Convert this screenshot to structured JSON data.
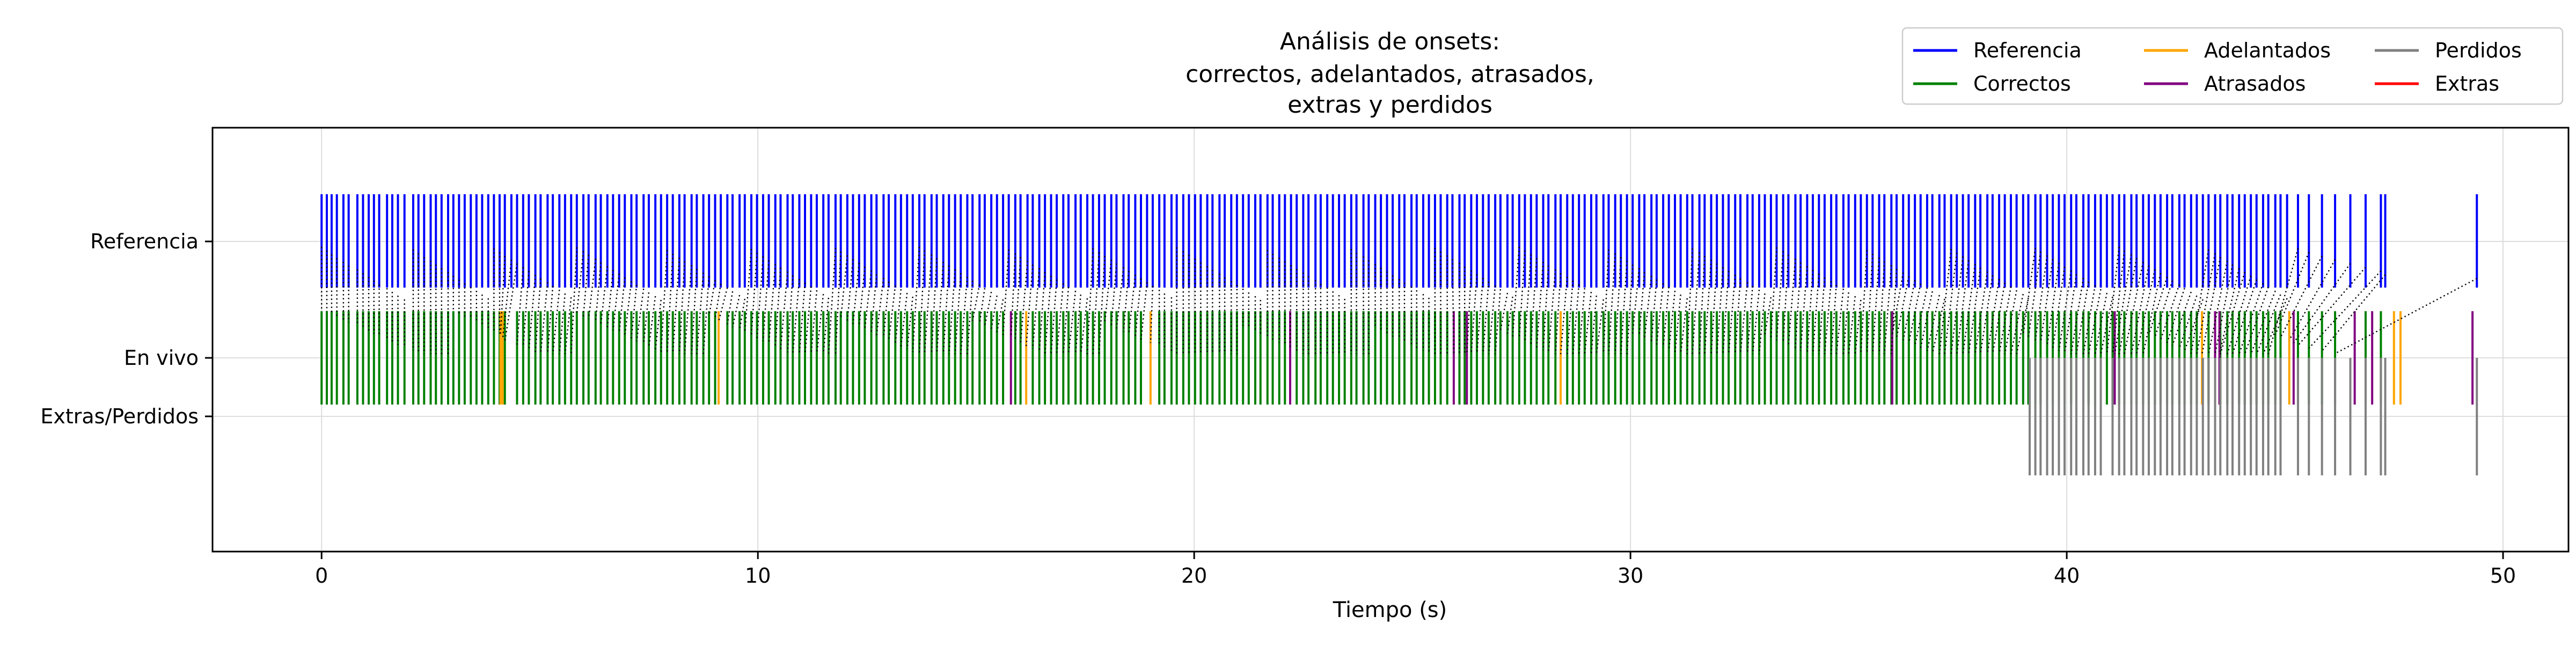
{
  "chart_data": {
    "type": "event-raster",
    "title": [
      "Análisis de onsets:",
      "correctos, adelantados, atrasados,",
      "extras y perdidos"
    ],
    "xlabel": "Tiempo (s)",
    "ylabel": "",
    "xlim": [
      -2.5,
      51.5
    ],
    "xticks": [
      0,
      10,
      20,
      30,
      40,
      50
    ],
    "xtick_labels": [
      "0",
      "10",
      "20",
      "30",
      "40",
      "50"
    ],
    "yticks": [
      "Referencia",
      "En vivo",
      "Extras/Perdidos"
    ],
    "grid": true,
    "legend": {
      "location": "top-right",
      "columns": 3,
      "entries": [
        {
          "name": "Referencia",
          "color": "#0000ff"
        },
        {
          "name": "Correctos",
          "color": "#008000"
        },
        {
          "name": "Adelantados",
          "color": "#ffa500"
        },
        {
          "name": "Atrasados",
          "color": "#800080"
        },
        {
          "name": "Perdidos",
          "color": "#808080"
        },
        {
          "name": "Extras",
          "color": "#ff0000"
        }
      ]
    },
    "series": [
      {
        "name": "Referencia",
        "row": "Referencia",
        "color": "#0000ff",
        "onsets": [
          0.0,
          0.12,
          0.23,
          0.35,
          0.5,
          0.62,
          0.82,
          0.95,
          1.08,
          1.2,
          1.32,
          1.5,
          1.62,
          1.75,
          1.9,
          2.1,
          2.22,
          2.35,
          2.5,
          2.62,
          2.75,
          2.9,
          3.02,
          3.15,
          3.28,
          3.42,
          3.55,
          3.68,
          3.82,
          3.95,
          4.08,
          4.2,
          4.35,
          4.48,
          4.62,
          4.75,
          4.9,
          5.02,
          5.18,
          5.3,
          5.45,
          5.58,
          5.72,
          5.85,
          6.0,
          6.12,
          6.28,
          6.4,
          6.55,
          6.68,
          6.82,
          6.95,
          7.1,
          7.22,
          7.38,
          7.5,
          7.65,
          7.78,
          7.92,
          8.05,
          8.2,
          8.32,
          8.48,
          8.6,
          8.75,
          8.88,
          9.02,
          9.15,
          9.3,
          9.42,
          9.58,
          9.7,
          9.85,
          9.98,
          10.12,
          10.25,
          10.4,
          10.52,
          10.68,
          10.8,
          10.95,
          11.08,
          11.22,
          11.35,
          11.5,
          11.62,
          11.78,
          11.9,
          12.05,
          12.18,
          12.32,
          12.45,
          12.6,
          12.72,
          12.88,
          13.0,
          13.15,
          13.28,
          13.42,
          13.55,
          13.7,
          13.82,
          13.98,
          14.1,
          14.25,
          14.38,
          14.52,
          14.65,
          14.8,
          14.92,
          15.08,
          15.2,
          15.35,
          15.48,
          15.62,
          15.75,
          15.9,
          16.02,
          16.18,
          16.3,
          16.45,
          16.58,
          16.72,
          16.85,
          17.0,
          17.12,
          17.28,
          17.4,
          17.55,
          17.68,
          17.82,
          17.95,
          18.1,
          18.22,
          18.38,
          18.5,
          18.65,
          18.78,
          18.92,
          19.05,
          19.2,
          19.32,
          19.48,
          19.6,
          19.75,
          19.88,
          20.02,
          20.15,
          20.3,
          20.42,
          20.58,
          20.7,
          20.85,
          20.98,
          21.12,
          21.25,
          21.4,
          21.52,
          21.68,
          21.8,
          21.95,
          22.08,
          22.22,
          22.35,
          22.5,
          22.62,
          22.78,
          22.9,
          23.05,
          23.18,
          23.32,
          23.45,
          23.6,
          23.72,
          23.88,
          24.0,
          24.15,
          24.28,
          24.42,
          24.55,
          24.7,
          24.82,
          24.98,
          25.1,
          25.25,
          25.38,
          25.52,
          25.65,
          25.8,
          25.92,
          26.08,
          26.2,
          26.35,
          26.48,
          26.62,
          26.75,
          26.9,
          27.02,
          27.18,
          27.3,
          27.45,
          27.58,
          27.72,
          27.85,
          28.0,
          28.12,
          28.28,
          28.4,
          28.55,
          28.68,
          28.82,
          28.95,
          29.1,
          29.22,
          29.38,
          29.5,
          29.65,
          29.78,
          29.92,
          30.05,
          30.2,
          30.32,
          30.48,
          30.6,
          30.75,
          30.88,
          31.02,
          31.15,
          31.3,
          31.42,
          31.58,
          31.7,
          31.85,
          31.98,
          32.12,
          32.25,
          32.4,
          32.52,
          32.68,
          32.8,
          32.95,
          33.08,
          33.22,
          33.35,
          33.5,
          33.62,
          33.78,
          33.9,
          34.05,
          34.18,
          34.32,
          34.45,
          34.6,
          34.72,
          34.88,
          35.0,
          35.15,
          35.28,
          35.42,
          35.55,
          35.7,
          35.82,
          35.98,
          36.1,
          36.25,
          36.38,
          36.52,
          36.65,
          36.8,
          36.92,
          37.08,
          37.2,
          37.35,
          37.48,
          37.62,
          37.75,
          37.9,
          38.02,
          38.18,
          38.3,
          38.45,
          38.58,
          38.72,
          38.85,
          39.0,
          39.12,
          39.28,
          39.4,
          39.55,
          39.68,
          39.82,
          39.95,
          40.1,
          40.22,
          40.38,
          40.5,
          40.65,
          40.78,
          40.92,
          41.05,
          41.2,
          41.32,
          41.48,
          41.6,
          41.75,
          41.88,
          42.02,
          42.15,
          42.3,
          42.42,
          42.58,
          42.7,
          42.85,
          42.98,
          43.12,
          43.25,
          43.4,
          43.52,
          43.68,
          43.8,
          43.95,
          44.08,
          44.22,
          44.35,
          44.5,
          44.62,
          44.78,
          44.9,
          45.05,
          45.3,
          45.55,
          45.85,
          46.15,
          46.5,
          46.85,
          47.2,
          47.3,
          49.4
        ]
      },
      {
        "name": "Correctos",
        "row": "En vivo",
        "color": "#008000",
        "onsets": [
          0.0,
          0.12,
          0.23,
          0.35,
          0.5,
          0.62,
          0.82,
          0.95,
          1.08,
          1.2,
          1.32,
          1.5,
          1.62,
          1.75,
          1.9,
          2.1,
          2.22,
          2.35,
          2.5,
          2.62,
          2.75,
          2.9,
          3.02,
          3.15,
          3.28,
          3.42,
          3.55,
          3.68,
          3.82,
          3.95,
          4.08,
          4.2,
          4.48,
          4.62,
          4.75,
          4.9,
          5.02,
          5.18,
          5.3,
          5.45,
          5.58,
          5.72,
          5.85,
          6.0,
          6.12,
          6.28,
          6.4,
          6.55,
          6.68,
          6.82,
          6.95,
          7.1,
          7.22,
          7.38,
          7.5,
          7.65,
          7.78,
          7.92,
          8.05,
          8.2,
          8.32,
          8.48,
          8.6,
          8.75,
          8.88,
          9.02,
          9.3,
          9.42,
          9.58,
          9.7,
          9.85,
          9.98,
          10.12,
          10.25,
          10.4,
          10.52,
          10.68,
          10.8,
          10.95,
          11.08,
          11.22,
          11.35,
          11.5,
          11.62,
          11.78,
          11.9,
          12.05,
          12.18,
          12.32,
          12.45,
          12.6,
          12.72,
          12.88,
          13.0,
          13.15,
          13.28,
          13.42,
          13.55,
          13.7,
          13.82,
          13.98,
          14.1,
          14.25,
          14.38,
          14.52,
          14.65,
          14.8,
          14.92,
          15.08,
          15.2,
          15.35,
          15.48,
          15.62,
          15.9,
          16.02,
          16.3,
          16.45,
          16.58,
          16.72,
          16.85,
          17.0,
          17.12,
          17.28,
          17.4,
          17.55,
          17.68,
          17.82,
          17.95,
          18.1,
          18.22,
          18.38,
          18.5,
          18.65,
          18.78,
          19.2,
          19.32,
          19.48,
          19.6,
          19.75,
          19.88,
          20.02,
          20.15,
          20.3,
          20.42,
          20.58,
          20.7,
          20.85,
          20.98,
          21.12,
          21.25,
          21.4,
          21.52,
          21.68,
          21.8,
          21.95,
          22.08,
          22.35,
          22.5,
          22.62,
          22.78,
          22.9,
          23.05,
          23.18,
          23.32,
          23.45,
          23.6,
          23.72,
          23.88,
          24.0,
          24.15,
          24.28,
          24.42,
          24.55,
          24.7,
          24.82,
          24.98,
          25.1,
          25.25,
          25.38,
          25.52,
          25.65,
          25.8,
          26.08,
          26.2,
          26.35,
          26.48,
          26.62,
          26.75,
          26.9,
          27.02,
          27.18,
          27.3,
          27.45,
          27.58,
          27.72,
          27.85,
          28.0,
          28.12,
          28.28,
          28.55,
          28.68,
          28.82,
          28.95,
          29.1,
          29.22,
          29.38,
          29.5,
          29.65,
          29.78,
          29.92,
          30.05,
          30.2,
          30.32,
          30.48,
          30.6,
          30.75,
          30.88,
          31.02,
          31.15,
          31.3,
          31.42,
          31.58,
          31.7,
          31.85,
          31.98,
          32.12,
          32.25,
          32.4,
          32.52,
          32.68,
          32.8,
          32.95,
          33.08,
          33.22,
          33.35,
          33.5,
          33.62,
          33.78,
          33.9,
          34.05,
          34.18,
          34.32,
          34.45,
          34.6,
          34.72,
          34.88,
          35.0,
          35.15,
          35.28,
          35.42,
          35.55,
          35.7,
          35.82,
          35.98,
          36.1,
          36.25,
          36.38,
          36.52,
          36.65,
          36.8,
          36.92,
          37.08,
          37.2,
          37.35,
          37.48,
          37.62,
          37.75,
          37.9,
          38.02,
          38.18,
          38.3,
          38.45,
          38.58,
          38.72,
          38.85,
          39.0,
          39.12,
          39.28,
          39.4,
          39.55,
          39.68,
          39.82,
          39.95,
          40.1,
          40.22,
          40.38,
          40.5,
          40.65,
          40.78,
          40.92,
          41.05,
          41.2,
          41.32,
          41.48,
          41.6,
          41.75,
          41.88,
          42.02,
          42.15,
          42.3,
          42.42,
          42.58,
          42.7,
          42.85,
          42.98,
          43.25,
          43.52,
          43.68,
          43.8,
          43.95,
          44.08,
          44.22,
          44.35,
          44.5,
          44.62,
          44.78,
          44.9,
          45.3,
          45.55,
          45.85,
          46.15,
          46.85,
          47.2
        ]
      },
      {
        "name": "Adelantados",
        "row": "En vivo",
        "color": "#ffa500",
        "onsets": [
          4.1,
          4.15,
          9.1,
          16.15,
          19.0,
          28.4,
          43.1,
          45.1,
          47.5,
          47.65
        ]
      },
      {
        "name": "Atrasados",
        "row": "En vivo",
        "color": "#800080",
        "onsets": [
          15.8,
          22.2,
          25.95,
          26.25,
          36.0,
          41.1,
          43.4,
          43.5,
          45.2,
          46.6,
          47.0,
          49.3
        ]
      },
      {
        "name": "Perdidos",
        "row": "Extras/Perdidos",
        "color": "#808080",
        "onsets": [
          39.15,
          39.28,
          39.4,
          39.55,
          39.68,
          39.82,
          39.95,
          40.1,
          40.22,
          40.38,
          40.5,
          40.65,
          40.78,
          41.05,
          41.2,
          41.32,
          41.48,
          41.6,
          41.75,
          41.88,
          42.02,
          42.15,
          42.3,
          42.42,
          42.58,
          42.7,
          42.85,
          42.98,
          43.12,
          43.25,
          43.4,
          43.52,
          43.68,
          43.8,
          43.95,
          44.08,
          44.22,
          44.35,
          44.5,
          44.62,
          44.78,
          44.9,
          45.3,
          45.55,
          45.85,
          46.15,
          46.5,
          46.85,
          47.2,
          47.3,
          49.4
        ]
      },
      {
        "name": "Extras",
        "row": "Extras/Perdidos",
        "color": "#ff0000",
        "onsets": []
      }
    ]
  }
}
